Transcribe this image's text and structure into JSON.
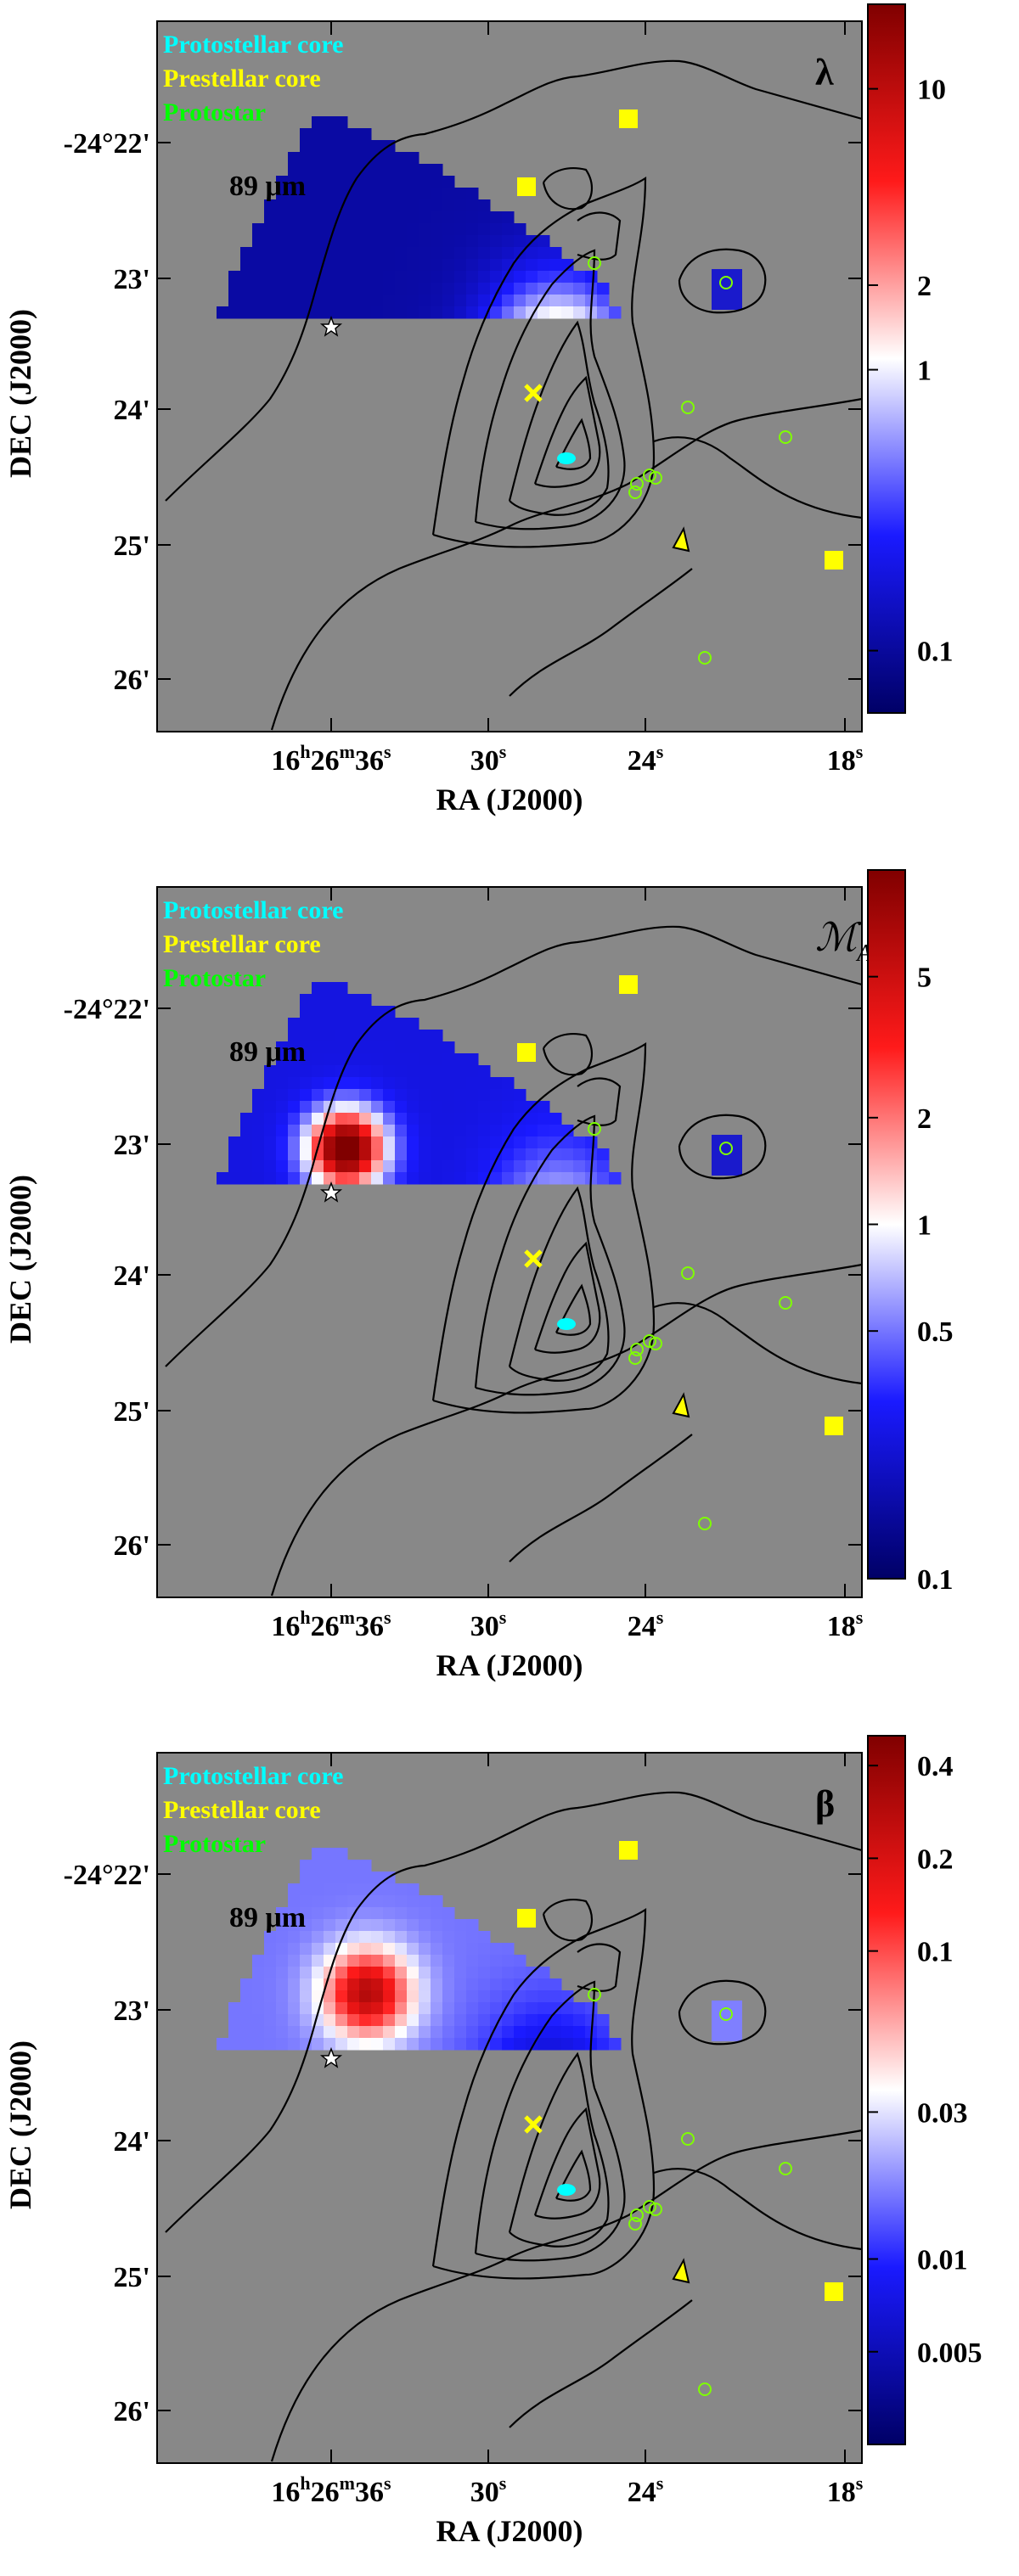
{
  "chart_data": [
    {
      "type": "heatmap",
      "panel_label": "λ",
      "wavelength_label": "89 μm",
      "xlabel": "RA (J2000)",
      "ylabel": "DEC (J2000)",
      "x_ticks": [
        {
          "h": "16",
          "m": "26",
          "s": "36",
          "value": "16h26m36s"
        },
        {
          "s": "30",
          "value": "30s"
        },
        {
          "s": "24",
          "value": "24s"
        },
        {
          "s": "18",
          "value": "18s"
        }
      ],
      "y_ticks": [
        "-24°22'",
        "23'",
        "24'",
        "25'",
        "26'"
      ],
      "colorbar": {
        "scale": "log",
        "range": [
          0.06,
          20
        ],
        "ticks": [
          "10",
          "2",
          "1",
          "0.1"
        ],
        "tick_values": [
          10,
          2,
          1,
          0.1
        ],
        "colors": [
          "#000066",
          "#1a1aff",
          "#ffffff",
          "#ff1a1a",
          "#800000"
        ]
      },
      "legend": {
        "placement": "top-left",
        "entries": [
          {
            "label": "Protostellar core",
            "color": "#00ffff"
          },
          {
            "label": "Prestellar core",
            "color": "#ffff00"
          },
          {
            "label": "Protostar",
            "color": "#00ff00"
          }
        ]
      }
    },
    {
      "type": "heatmap",
      "panel_label": "ℳ",
      "panel_label_sub": "A",
      "wavelength_label": "89 μm",
      "xlabel": "RA (J2000)",
      "ylabel": "DEC (J2000)",
      "x_ticks": [
        {
          "h": "16",
          "m": "26",
          "s": "36",
          "value": "16h26m36s"
        },
        {
          "s": "30",
          "value": "30s"
        },
        {
          "s": "24",
          "value": "24s"
        },
        {
          "s": "18",
          "value": "18s"
        }
      ],
      "y_ticks": [
        "-24°22'",
        "23'",
        "24'",
        "25'",
        "26'"
      ],
      "colorbar": {
        "scale": "log",
        "range": [
          0.1,
          10
        ],
        "ticks": [
          "5",
          "2",
          "1",
          "0.5",
          "0.1"
        ],
        "tick_values": [
          5,
          2,
          1,
          0.5,
          0.1
        ],
        "colors": [
          "#000066",
          "#1a1aff",
          "#ffffff",
          "#ff1a1a",
          "#800000"
        ]
      },
      "legend": {
        "placement": "top-left",
        "entries": [
          {
            "label": "Protostellar core",
            "color": "#00ffff"
          },
          {
            "label": "Prestellar core",
            "color": "#ffff00"
          },
          {
            "label": "Protostar",
            "color": "#00ff00"
          }
        ]
      }
    },
    {
      "type": "heatmap",
      "panel_label": "β",
      "wavelength_label": "89 μm",
      "xlabel": "RA (J2000)",
      "ylabel": "DEC (J2000)",
      "x_ticks": [
        {
          "h": "16",
          "m": "26",
          "s": "36",
          "value": "16h26m36s"
        },
        {
          "s": "30",
          "value": "30s"
        },
        {
          "s": "24",
          "value": "24s"
        },
        {
          "s": "18",
          "value": "18s"
        }
      ],
      "y_ticks": [
        "-24°22'",
        "23'",
        "24'",
        "25'",
        "26'"
      ],
      "colorbar": {
        "scale": "log",
        "range": [
          0.0025,
          0.5
        ],
        "ticks": [
          "0.4",
          "0.2",
          "0.1",
          "0.03",
          "0.01",
          "0.005"
        ],
        "tick_values": [
          0.4,
          0.2,
          0.1,
          0.03,
          0.01,
          0.005
        ],
        "colors": [
          "#000066",
          "#1a1aff",
          "#ffffff",
          "#ff1a1a",
          "#800000"
        ]
      },
      "legend": {
        "placement": "top-left",
        "entries": [
          {
            "label": "Protostellar core",
            "color": "#00ffff"
          },
          {
            "label": "Prestellar core",
            "color": "#ffff00"
          },
          {
            "label": "Protostar",
            "color": "#00ff00"
          }
        ]
      }
    }
  ]
}
